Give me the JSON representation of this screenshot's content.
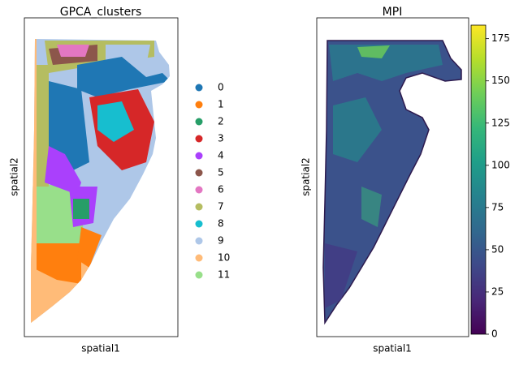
{
  "chart_data": [
    {
      "type": "scatter",
      "title": "GPCA_clusters",
      "xlabel": "spatial1",
      "ylabel": "spatial2",
      "series": [
        {
          "name": "0",
          "color": "#1f77b4"
        },
        {
          "name": "1",
          "color": "#ff7f0e"
        },
        {
          "name": "2",
          "color": "#279e68"
        },
        {
          "name": "3",
          "color": "#d62728"
        },
        {
          "name": "4",
          "color": "#aa40fc"
        },
        {
          "name": "5",
          "color": "#8c564b"
        },
        {
          "name": "6",
          "color": "#e377c2"
        },
        {
          "name": "7",
          "color": "#b5bd61"
        },
        {
          "name": "8",
          "color": "#17becf"
        },
        {
          "name": "9",
          "color": "#aec7e8"
        },
        {
          "name": "10",
          "color": "#ffbb78"
        },
        {
          "name": "11",
          "color": "#98df8a"
        }
      ]
    },
    {
      "type": "scatter",
      "title": "MPI",
      "xlabel": "spatial1",
      "ylabel": "spatial2",
      "colormap": "viridis",
      "clim": [
        0,
        183
      ],
      "cticks": [
        0,
        25,
        50,
        75,
        100,
        125,
        150,
        175
      ]
    }
  ]
}
